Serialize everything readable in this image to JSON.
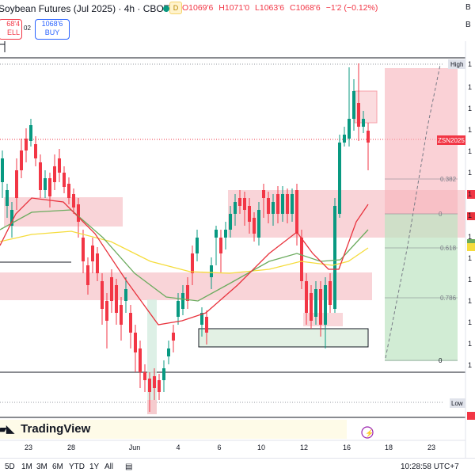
{
  "header": {
    "title": "Soybean Futures (Jul 2025) · 4h · CBOT",
    "badge": "D",
    "open": "O1069'6",
    "high": "H1071'0",
    "low": "L1063'6",
    "close": "C1068'6",
    "change": "−1'2 (−0.12%)",
    "sell_price": "68'4",
    "sell_label": "ELL",
    "spread": "02",
    "buy_price": "1068'6",
    "buy_label": "BUY",
    "right_b": "B",
    "right_b2": "B"
  },
  "price_axis": {
    "high_label": "High",
    "low_label": "Low",
    "symbol_tag": "ZSN2025",
    "tick_labels": [
      "1",
      "1",
      "1",
      "1",
      "1",
      "1",
      "1",
      "1",
      "1",
      "1",
      "1",
      "1",
      "1",
      "1",
      "1"
    ],
    "fib_levels": [
      "0.382",
      "0",
      "0.618",
      "0.786",
      "0"
    ]
  },
  "time_axis": {
    "labels": [
      "23",
      "28",
      "Jun",
      "4",
      "6",
      "10",
      "12",
      "16",
      "18",
      "23"
    ]
  },
  "branding": {
    "logo_text": "TradingView"
  },
  "footer": {
    "ranges": [
      "5D",
      "1M",
      "3M",
      "6M",
      "YTD",
      "1Y",
      "All"
    ],
    "time": "10:28:58 UTC+7"
  },
  "colors": {
    "up": "#089981",
    "down": "#f23645",
    "ema_fast": "#e8323c",
    "ema_mid": "#6bab5e",
    "ema_slow": "#f5dc3c"
  },
  "chart_data": {
    "type": "candlestick",
    "title": "Soybean Futures (Jul 2025) · 4h · CBOT",
    "x_labels": [
      "23",
      "28",
      "Jun",
      "4",
      "6",
      "10",
      "12",
      "16",
      "18",
      "23"
    ],
    "series": [
      {
        "name": "ZSN2025",
        "candles_close_trend": [
          1064,
          1066,
          1063,
          1060,
          1058,
          1055,
          1048,
          1040,
          1036,
          1043,
          1050,
          1055,
          1060,
          1058,
          1052,
          1048,
          1063,
          1070,
          1067
        ]
      }
    ],
    "grid": true
  }
}
